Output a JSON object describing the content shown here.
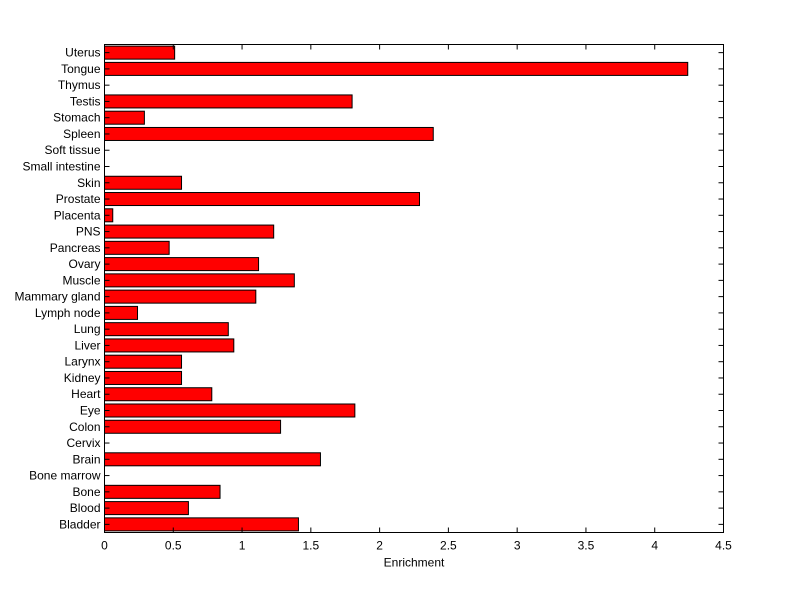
{
  "chart_data": {
    "type": "bar",
    "orientation": "horizontal",
    "title": "",
    "xlabel": "Enrichment",
    "ylabel": "",
    "xlim": [
      0,
      4.5
    ],
    "xticks": [
      0,
      0.5,
      1,
      1.5,
      2,
      2.5,
      3,
      3.5,
      4,
      4.5
    ],
    "xtick_labels": [
      "0",
      "0.5",
      "1",
      "1.5",
      "2",
      "2.5",
      "3",
      "3.5",
      "4",
      "4.5"
    ],
    "categories": [
      "Bladder",
      "Blood",
      "Bone",
      "Bone marrow",
      "Brain",
      "Cervix",
      "Colon",
      "Eye",
      "Heart",
      "Kidney",
      "Larynx",
      "Liver",
      "Lung",
      "Lymph node",
      "Mammary gland",
      "Muscle",
      "Ovary",
      "Pancreas",
      "PNS",
      "Placenta",
      "Prostate",
      "Skin",
      "Small intestine",
      "Soft tissue",
      "Spleen",
      "Stomach",
      "Testis",
      "Thymus",
      "Tongue",
      "Uterus"
    ],
    "values": [
      1.41,
      0.61,
      0.84,
      0,
      1.57,
      0,
      1.28,
      1.82,
      0.78,
      0.56,
      0.56,
      0.94,
      0.9,
      0.24,
      1.1,
      1.38,
      1.12,
      0.47,
      1.23,
      0.06,
      2.29,
      0.56,
      0,
      0,
      2.39,
      0.29,
      1.8,
      0,
      4.24,
      0.51
    ],
    "bar_color": "#ff0000",
    "grid": false,
    "legend": "none"
  }
}
